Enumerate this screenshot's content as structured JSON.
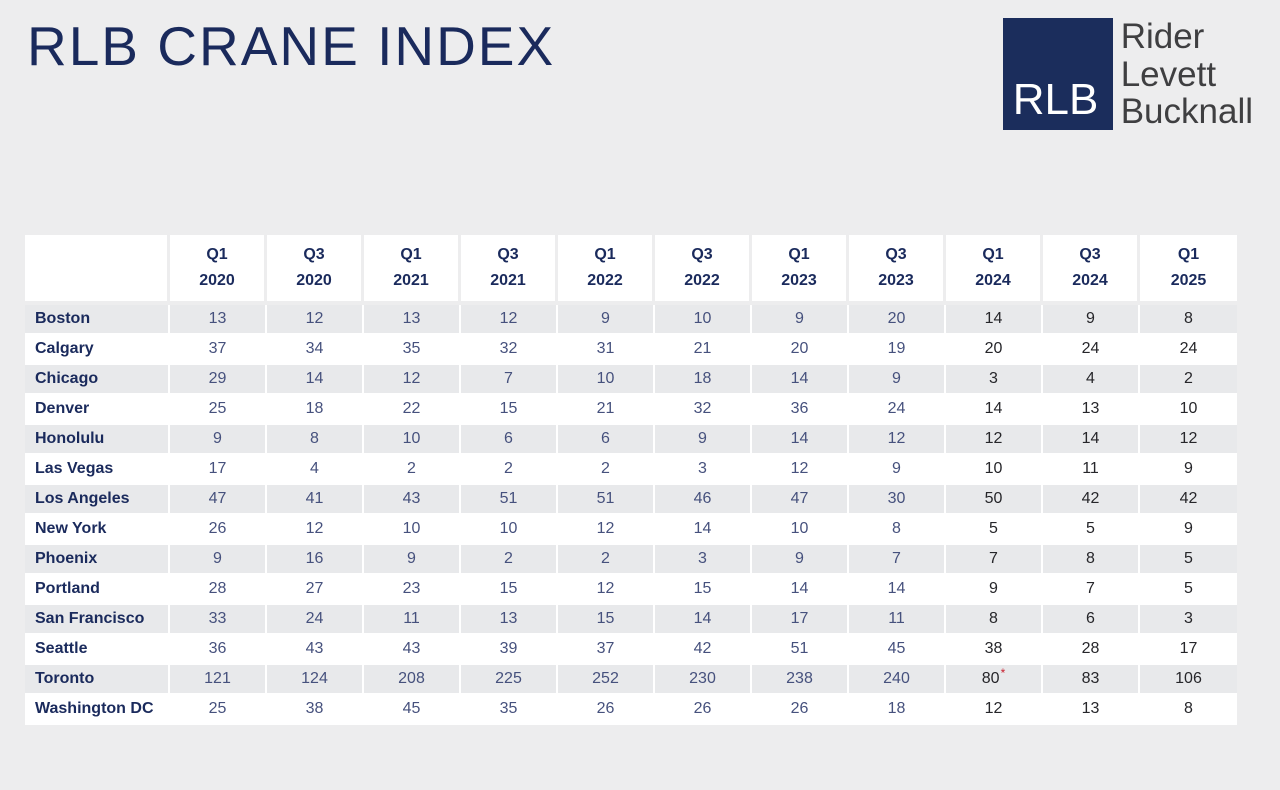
{
  "page": {
    "title": "RLB CRANE INDEX",
    "background_color": "#ededee"
  },
  "logo": {
    "box_text": "RLB",
    "company_lines": [
      "Rider",
      "Levett",
      "Bucknall"
    ],
    "box_color": "#1b2d5c",
    "text_color": "#3f3f41"
  },
  "colors": {
    "title_navy": "#1a2a5c",
    "value_navy": "#46517d",
    "value_dark": "#26262a",
    "stripe_gray": "#e8e9eb",
    "asterisk_red": "#c8202e"
  },
  "chart_data": {
    "type": "table",
    "title": "RLB CRANE INDEX",
    "categories": [
      "Q1 2020",
      "Q3 2020",
      "Q1 2021",
      "Q3 2021",
      "Q1 2022",
      "Q3 2022",
      "Q1 2023",
      "Q3 2023",
      "Q1 2024",
      "Q3 2024",
      "Q1 2025"
    ],
    "series": [
      {
        "name": "Boston",
        "values": [
          13,
          12,
          13,
          12,
          9,
          10,
          9,
          20,
          14,
          9,
          8
        ]
      },
      {
        "name": "Calgary",
        "values": [
          37,
          34,
          35,
          32,
          31,
          21,
          20,
          19,
          20,
          24,
          24
        ]
      },
      {
        "name": "Chicago",
        "values": [
          29,
          14,
          12,
          7,
          10,
          18,
          14,
          9,
          3,
          4,
          2
        ]
      },
      {
        "name": "Denver",
        "values": [
          25,
          18,
          22,
          15,
          21,
          32,
          36,
          24,
          14,
          13,
          10
        ]
      },
      {
        "name": "Honolulu",
        "values": [
          9,
          8,
          10,
          6,
          6,
          9,
          14,
          12,
          12,
          14,
          12
        ]
      },
      {
        "name": "Las Vegas",
        "values": [
          17,
          4,
          2,
          2,
          2,
          3,
          12,
          9,
          10,
          11,
          9
        ]
      },
      {
        "name": "Los Angeles",
        "values": [
          47,
          41,
          43,
          51,
          51,
          46,
          47,
          30,
          50,
          42,
          42
        ]
      },
      {
        "name": "New York",
        "values": [
          26,
          12,
          10,
          10,
          12,
          14,
          10,
          8,
          5,
          5,
          9
        ]
      },
      {
        "name": "Phoenix",
        "values": [
          9,
          16,
          9,
          2,
          2,
          3,
          9,
          7,
          7,
          8,
          5
        ]
      },
      {
        "name": "Portland",
        "values": [
          28,
          27,
          23,
          15,
          12,
          15,
          14,
          14,
          9,
          7,
          5
        ]
      },
      {
        "name": "San Francisco",
        "values": [
          33,
          24,
          11,
          13,
          15,
          14,
          17,
          11,
          8,
          6,
          3
        ]
      },
      {
        "name": "Seattle",
        "values": [
          36,
          43,
          43,
          39,
          37,
          42,
          51,
          45,
          38,
          28,
          17
        ]
      },
      {
        "name": "Toronto",
        "values": [
          121,
          124,
          208,
          225,
          252,
          230,
          238,
          240,
          80,
          83,
          106
        ]
      },
      {
        "name": "Washington DC",
        "values": [
          25,
          38,
          45,
          35,
          26,
          26,
          26,
          18,
          12,
          13,
          8
        ]
      }
    ],
    "annotations": [
      "Toronto Q1 2024 value 80 is marked with a red asterisk (*)"
    ]
  },
  "table": {
    "corner_label": "",
    "columns": [
      {
        "quarter": "Q1",
        "year": "2020",
        "dark": false
      },
      {
        "quarter": "Q3",
        "year": "2020",
        "dark": false
      },
      {
        "quarter": "Q1",
        "year": "2021",
        "dark": false
      },
      {
        "quarter": "Q3",
        "year": "2021",
        "dark": false
      },
      {
        "quarter": "Q1",
        "year": "2022",
        "dark": false
      },
      {
        "quarter": "Q3",
        "year": "2022",
        "dark": false
      },
      {
        "quarter": "Q1",
        "year": "2023",
        "dark": false
      },
      {
        "quarter": "Q3",
        "year": "2023",
        "dark": false
      },
      {
        "quarter": "Q1",
        "year": "2024",
        "dark": true
      },
      {
        "quarter": "Q3",
        "year": "2024",
        "dark": true
      },
      {
        "quarter": "Q1",
        "year": "2025",
        "dark": true
      }
    ],
    "rows": [
      {
        "city": "Boston",
        "values": [
          "13",
          "12",
          "13",
          "12",
          "9",
          "10",
          "9",
          "20",
          "14",
          "9",
          "8"
        ]
      },
      {
        "city": "Calgary",
        "values": [
          "37",
          "34",
          "35",
          "32",
          "31",
          "21",
          "20",
          "19",
          "20",
          "24",
          "24"
        ]
      },
      {
        "city": "Chicago",
        "values": [
          "29",
          "14",
          "12",
          "7",
          "10",
          "18",
          "14",
          "9",
          "3",
          "4",
          "2"
        ]
      },
      {
        "city": "Denver",
        "values": [
          "25",
          "18",
          "22",
          "15",
          "21",
          "32",
          "36",
          "24",
          "14",
          "13",
          "10"
        ]
      },
      {
        "city": "Honolulu",
        "values": [
          "9",
          "8",
          "10",
          "6",
          "6",
          "9",
          "14",
          "12",
          "12",
          "14",
          "12"
        ]
      },
      {
        "city": "Las Vegas",
        "values": [
          "17",
          "4",
          "2",
          "2",
          "2",
          "3",
          "12",
          "9",
          "10",
          "11",
          "9"
        ]
      },
      {
        "city": "Los Angeles",
        "values": [
          "47",
          "41",
          "43",
          "51",
          "51",
          "46",
          "47",
          "30",
          "50",
          "42",
          "42"
        ]
      },
      {
        "city": "New York",
        "values": [
          "26",
          "12",
          "10",
          "10",
          "12",
          "14",
          "10",
          "8",
          "5",
          "5",
          "9"
        ]
      },
      {
        "city": "Phoenix",
        "values": [
          "9",
          "16",
          "9",
          "2",
          "2",
          "3",
          "9",
          "7",
          "7",
          "8",
          "5"
        ]
      },
      {
        "city": "Portland",
        "values": [
          "28",
          "27",
          "23",
          "15",
          "12",
          "15",
          "14",
          "14",
          "9",
          "7",
          "5"
        ]
      },
      {
        "city": "San Francisco",
        "values": [
          "33",
          "24",
          "11",
          "13",
          "15",
          "14",
          "17",
          "11",
          "8",
          "6",
          "3"
        ]
      },
      {
        "city": "Seattle",
        "values": [
          "36",
          "43",
          "43",
          "39",
          "37",
          "42",
          "51",
          "45",
          "38",
          "28",
          "17"
        ]
      },
      {
        "city": "Toronto",
        "values": [
          "121",
          "124",
          "208",
          "225",
          "252",
          "230",
          "238",
          "240",
          "80*",
          "83",
          "106"
        ]
      },
      {
        "city": "Washington DC",
        "values": [
          "25",
          "38",
          "45",
          "35",
          "26",
          "26",
          "26",
          "18",
          "12",
          "13",
          "8"
        ]
      }
    ]
  }
}
